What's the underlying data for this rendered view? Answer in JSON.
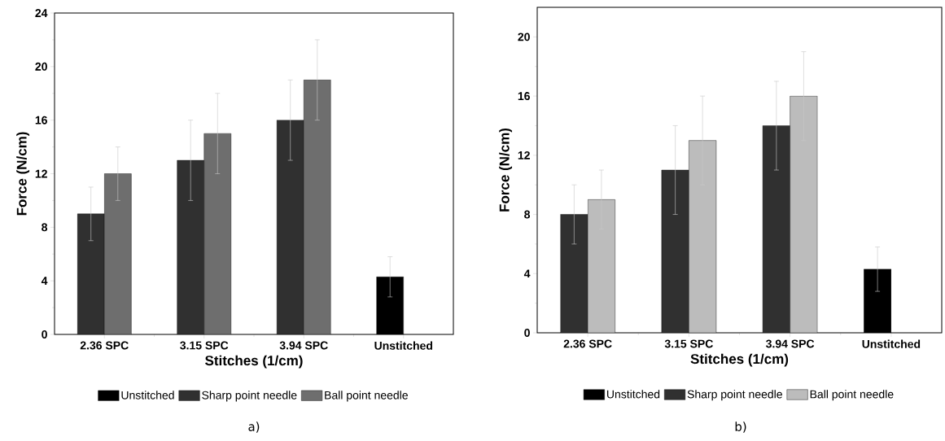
{
  "chart_data": [
    {
      "type": "bar",
      "xlabel": "Stitches (1/cm)",
      "ylabel": "Force (N/cm)",
      "categories": [
        "2.36 SPC",
        "3.15 SPC",
        "3.94 SPC",
        "Unstitched"
      ],
      "ylim": [
        0,
        24
      ],
      "yticks": [
        0,
        4,
        8,
        12,
        16,
        20,
        24
      ],
      "legend": "bottom",
      "annotations": [
        "a)"
      ],
      "series": [
        {
          "name": "Unstitched",
          "color": "#000000",
          "values": [
            null,
            null,
            null,
            4.3
          ],
          "errors": [
            null,
            null,
            null,
            1.5
          ]
        },
        {
          "name": "Sharp point needle",
          "color": "#303030",
          "values": [
            9,
            13,
            16,
            null
          ],
          "errors": [
            2,
            3,
            3,
            null
          ]
        },
        {
          "name": "Ball point needle",
          "color": "#6e6e6e",
          "values": [
            12,
            15,
            19,
            null
          ],
          "errors": [
            2,
            3,
            3,
            null
          ]
        }
      ]
    },
    {
      "type": "bar",
      "xlabel": "Stitches (1/cm)",
      "ylabel": "Force (N/cm)",
      "categories": [
        "2.36 SPC",
        "3.15 SPC",
        "3.94 SPC",
        "Unstitched"
      ],
      "ylim": [
        0,
        22
      ],
      "yticks": [
        0,
        4,
        8,
        12,
        16,
        20
      ],
      "legend": "bottom",
      "annotations": [
        "b)"
      ],
      "series": [
        {
          "name": "Unstitched",
          "color": "#000000",
          "values": [
            null,
            null,
            null,
            4.3
          ],
          "errors": [
            null,
            null,
            null,
            1.5
          ]
        },
        {
          "name": "Sharp point needle",
          "color": "#303030",
          "values": [
            8,
            11,
            14,
            null
          ],
          "errors": [
            2,
            3,
            3,
            null
          ]
        },
        {
          "name": "Ball point needle",
          "color": "#bcbcbc",
          "values": [
            9,
            13,
            16,
            null
          ],
          "errors": [
            2,
            3,
            3,
            null
          ]
        }
      ]
    }
  ]
}
